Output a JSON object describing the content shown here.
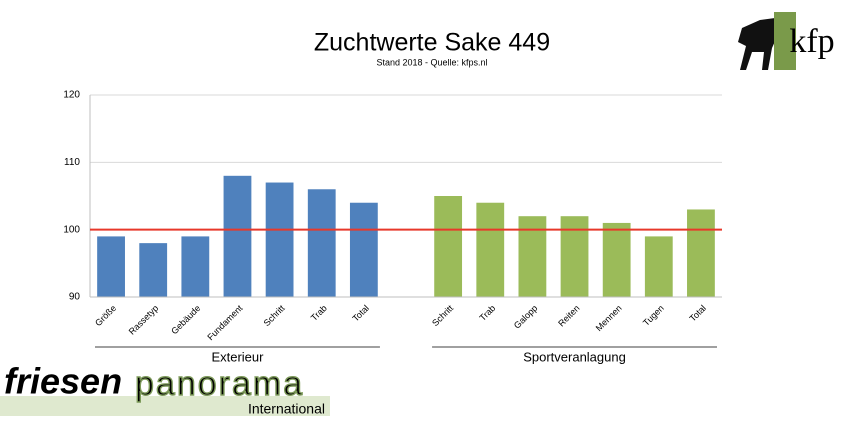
{
  "chart_data": {
    "type": "bar",
    "title": "Zuchtwerte Sake 449",
    "subtitle": "Stand 2018 - Quelle: kfps.nl",
    "groups": [
      {
        "name": "Exterieur",
        "color": "#4f81bd",
        "categories": [
          "Größe",
          "Rassetyp",
          "Gebäude",
          "Fundament",
          "Schritt",
          "Trab",
          "Total"
        ],
        "values": [
          99,
          98,
          99,
          108,
          107,
          106,
          104
        ]
      },
      {
        "name": "Sportveranlagung",
        "color": "#9bbb59",
        "categories": [
          "Schritt",
          "Trab",
          "Galopp",
          "Reiten",
          "Mennen",
          "Tugen",
          "Total"
        ],
        "values": [
          105,
          104,
          102,
          102,
          101,
          99,
          103
        ]
      }
    ],
    "ylim": [
      90,
      120
    ],
    "yticks": [
      90,
      100,
      110,
      120
    ],
    "grid": true,
    "reference_line": {
      "value": 100,
      "color": "#e8382a"
    }
  },
  "logo": {
    "brand": "friesen",
    "brand2": "panorama",
    "tagline": "International",
    "mark": "kfp"
  }
}
